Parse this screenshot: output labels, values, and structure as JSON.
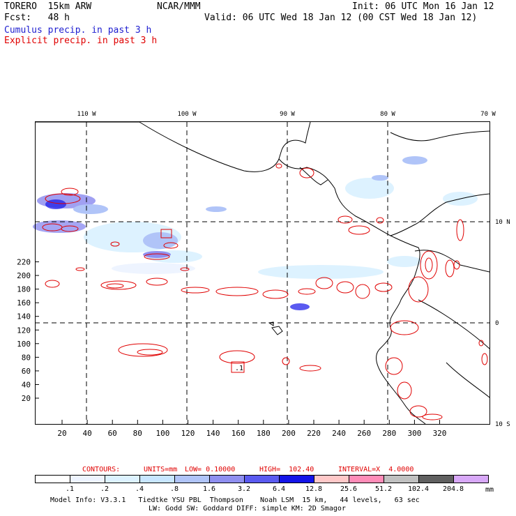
{
  "header": {
    "model": "TORERO  15km ARW",
    "org": "NCAR/MMM",
    "init": "Init: 06 UTC Mon 16 Jan 12",
    "fcst_label": "Fcst:   48 h",
    "valid": "Valid: 06 UTC Wed 18 Jan 12 (00 CST Wed 18 Jan 12)",
    "legend_cumulus": "Cumulus precip. in past 3 h",
    "legend_explicit": "Explicit precip. in past 3 h"
  },
  "map": {
    "lon_labels": [
      "110 W",
      "100 W",
      "90 W",
      "80 W",
      "70 W"
    ],
    "lat_labels": [
      "10 N",
      "0",
      "10 S"
    ],
    "x_ticks": [
      "20",
      "40",
      "60",
      "80",
      "100",
      "120",
      "140",
      "160",
      "180",
      "200",
      "220",
      "240",
      "260",
      "280",
      "300",
      "320"
    ],
    "y_ticks": [
      "20",
      "40",
      "60",
      "80",
      "100",
      "120",
      "140",
      "160",
      "180",
      "200",
      "220"
    ],
    "box_label": ".1"
  },
  "contour_info": {
    "contours": "CONTOURS:",
    "units": "UNITS=mm",
    "low": "LOW= 0.10000",
    "high": "HIGH=  102.40",
    "interval": "INTERVAL=X  4.0000"
  },
  "colorbar": {
    "colors": [
      "#ffffff",
      "#eef4ff",
      "#ddf2ff",
      "#c8e6ff",
      "#b0c4f8",
      "#8f8ff0",
      "#5a5af0",
      "#1414e8",
      "#ffc8c8",
      "#ff8cb8",
      "#c0c0c0",
      "#606060",
      "#d8a8f8"
    ],
    "labels": [
      ".1",
      ".2",
      ".4",
      ".8",
      "1.6",
      "3.2",
      "6.4",
      "12.8",
      "25.6",
      "51.2",
      "102.4",
      "204.8"
    ],
    "unit": "mm"
  },
  "footer": {
    "line1": "Model Info: V3.3.1   Tiedtke YSU PBL  Thompson    Noah LSM  15 km,   44 levels,   63 sec",
    "line2": "LW: Godd SW: Goddard DIFF: simple KM: 2D Smagor"
  }
}
